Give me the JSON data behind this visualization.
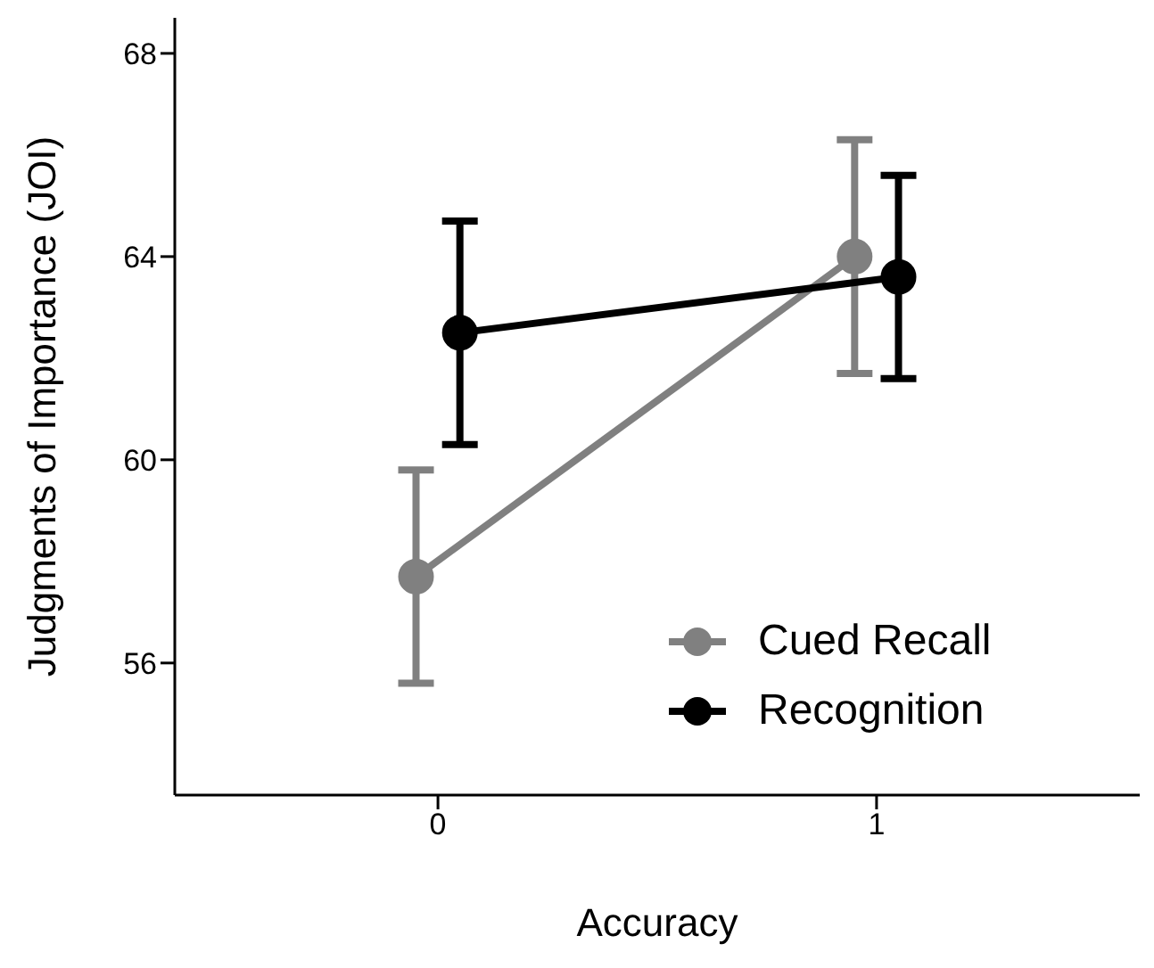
{
  "chart_data": {
    "type": "line",
    "xlabel": "Accuracy",
    "ylabel": "Judgments of Importance (JOI)",
    "xlim": [
      -0.6,
      1.6
    ],
    "xticks": [
      0,
      1
    ],
    "ylim": [
      53.4,
      68.7
    ],
    "yticks": [
      56,
      60,
      64,
      68
    ],
    "series": [
      {
        "name": "Cued Recall",
        "color": "#808080",
        "x": [
          -0.05,
          0.95
        ],
        "values": [
          57.7,
          64.0
        ],
        "errors": [
          [
            55.6,
            59.8
          ],
          [
            61.7,
            66.3
          ]
        ]
      },
      {
        "name": "Recognition",
        "color": "#000000",
        "x": [
          0.05,
          1.05
        ],
        "values": [
          62.5,
          63.6
        ],
        "errors": [
          [
            60.3,
            64.7
          ],
          [
            61.6,
            65.6
          ]
        ]
      }
    ],
    "grid": false,
    "legend": "bottom right",
    "marker": "circle",
    "line_style": "solid"
  }
}
